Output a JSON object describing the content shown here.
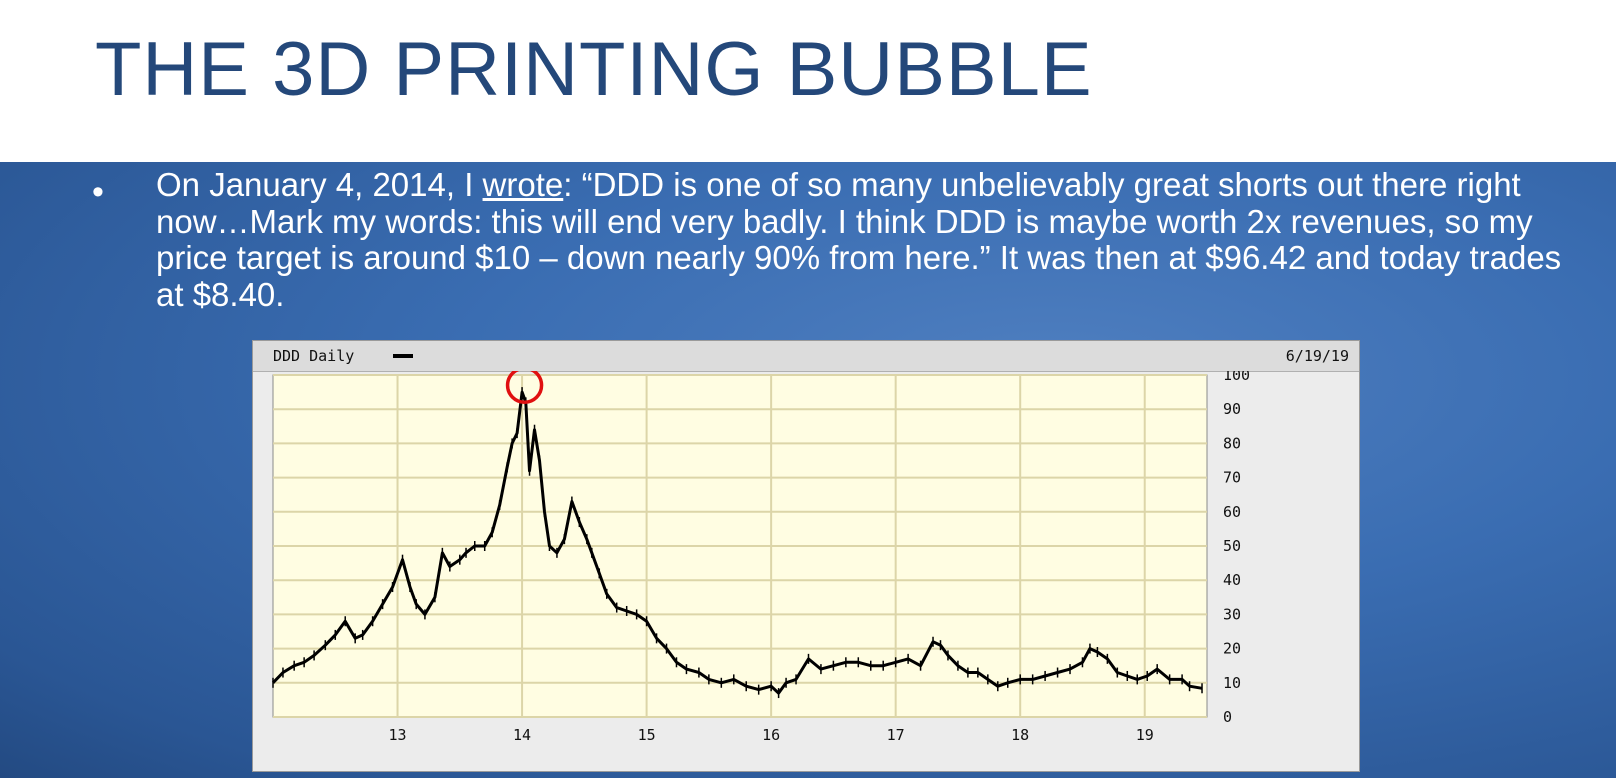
{
  "slide": {
    "title": "THE 3D PRINTING BUBBLE",
    "bullet_pre": "On January 4, 2014, I ",
    "bullet_link": "wrote",
    "bullet_post": ": “DDD is one of so many unbelievably great shorts out there right now…Mark my words: this will end very badly. I think DDD is maybe worth 2x revenues, so my price target is around $10 – down nearly 90% from here.” It was then at $96.42 and today trades at $8.40."
  },
  "colors": {
    "title": "#24487a",
    "plot_bg": "#fffde2",
    "grid": "#dcd5a8",
    "line": "#000000",
    "highlight_circle": "#e01010"
  },
  "chart_data": {
    "type": "line",
    "title": "DDD Daily",
    "date_label": "6/19/19",
    "xlabel": "",
    "ylabel": "",
    "x_ticks": [
      "13",
      "14",
      "15",
      "16",
      "17",
      "18",
      "19"
    ],
    "y_ticks": [
      "0",
      "10",
      "20",
      "30",
      "40",
      "50",
      "60",
      "70",
      "80",
      "90",
      "100"
    ],
    "ylim": [
      0,
      100
    ],
    "grid": true,
    "legend": "top-left",
    "highlight": {
      "x": 2014.02,
      "y": 97,
      "shape": "circle"
    },
    "series": [
      {
        "x": [
          2012.0,
          2012.08,
          2012.17,
          2012.25,
          2012.33,
          2012.42,
          2012.5,
          2012.58,
          2012.66,
          2012.72,
          2012.8,
          2012.88,
          2012.96,
          2013.04,
          2013.1,
          2013.15,
          2013.22,
          2013.3,
          2013.36,
          2013.42,
          2013.5,
          2013.55,
          2013.62,
          2013.7,
          2013.76,
          2013.82,
          2013.88,
          2013.92,
          2013.96,
          2014.0,
          2014.03,
          2014.06,
          2014.1,
          2014.14,
          2014.18,
          2014.22,
          2014.28,
          2014.34,
          2014.4,
          2014.46,
          2014.52,
          2014.56,
          2014.62,
          2014.68,
          2014.76,
          2014.84,
          2014.92,
          2015.0,
          2015.08,
          2015.16,
          2015.24,
          2015.32,
          2015.42,
          2015.5,
          2015.6,
          2015.7,
          2015.8,
          2015.9,
          2016.0,
          2016.06,
          2016.12,
          2016.2,
          2016.3,
          2016.4,
          2016.5,
          2016.6,
          2016.7,
          2016.8,
          2016.9,
          2017.0,
          2017.1,
          2017.2,
          2017.3,
          2017.36,
          2017.42,
          2017.5,
          2017.58,
          2017.66,
          2017.74,
          2017.82,
          2017.9,
          2018.0,
          2018.1,
          2018.2,
          2018.3,
          2018.4,
          2018.5,
          2018.56,
          2018.62,
          2018.7,
          2018.78,
          2018.86,
          2018.94,
          2019.02,
          2019.1,
          2019.2,
          2019.3,
          2019.36,
          2019.46
        ],
        "y": [
          10,
          13,
          15,
          16,
          18,
          21,
          24,
          28,
          23,
          24,
          28,
          33,
          38,
          46,
          38,
          33,
          30,
          35,
          48,
          44,
          46,
          48,
          50,
          50,
          54,
          62,
          73,
          80,
          83,
          95,
          92,
          72,
          84,
          75,
          60,
          50,
          48,
          52,
          63,
          57,
          52,
          48,
          42,
          36,
          32,
          31,
          30,
          28,
          23,
          20,
          16,
          14,
          13,
          11,
          10,
          11,
          9,
          8,
          9,
          7,
          10,
          11,
          17,
          14,
          15,
          16,
          16,
          15,
          15,
          16,
          17,
          15,
          22,
          21,
          18,
          15,
          13,
          13,
          11,
          9,
          10,
          11,
          11,
          12,
          13,
          14,
          16,
          20,
          19,
          17,
          13,
          12,
          11,
          12,
          14,
          11,
          11,
          9,
          8.4
        ]
      }
    ]
  }
}
